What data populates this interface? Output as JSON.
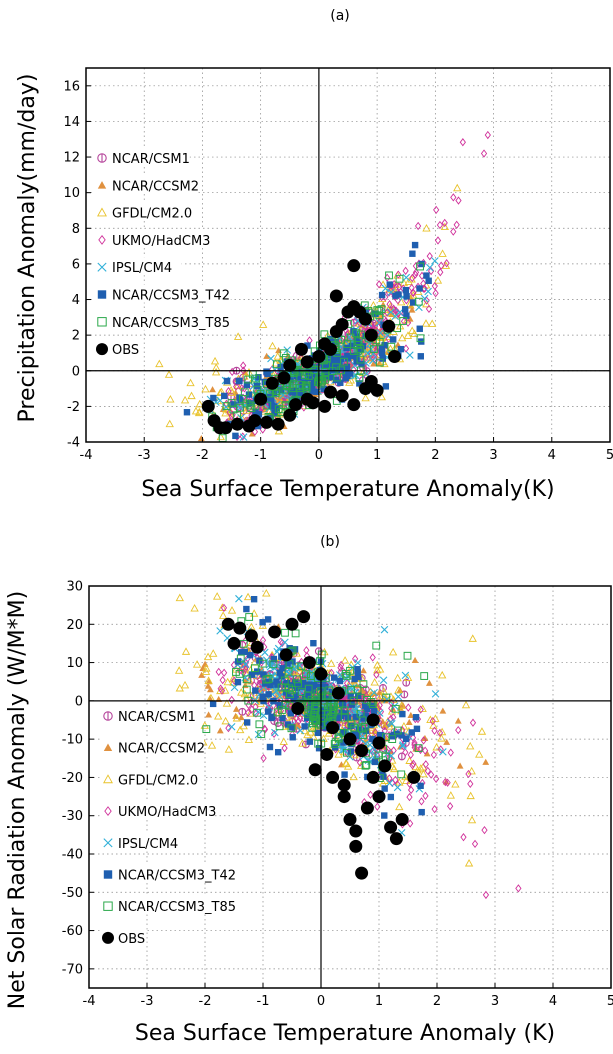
{
  "chart_data": [
    {
      "type": "scatter",
      "panel_label": "(a)",
      "xlabel": "Sea Surface Temperature Anomaly(K)",
      "ylabel": "Precipitation Anomaly(mm/day)",
      "xlim": [
        -4,
        5
      ],
      "ylim": [
        -4,
        17
      ],
      "xticks": [
        "-4",
        "-3",
        "-2",
        "-1",
        "0",
        "1",
        "2",
        "3",
        "4",
        "5"
      ],
      "yticks": [
        "-4",
        "-2",
        "0",
        "2",
        "4",
        "6",
        "8",
        "10",
        "12",
        "14",
        "16"
      ],
      "grid": true,
      "legend_position": "left",
      "series": [
        {
          "name": "NCAR/CSM1",
          "marker": "circle-bar",
          "color": "#b5449b",
          "trend": {
            "x_range": [
              -1.6,
              1.4
            ],
            "slope": 1.8,
            "curv": 0.25,
            "spread": 0.8
          },
          "count": 220
        },
        {
          "name": "NCAR/CCSM2",
          "marker": "triangle-filled",
          "color": "#e0913f",
          "trend": {
            "x_range": [
              -2.2,
              1.6
            ],
            "slope": 1.6,
            "curv": 0.3,
            "spread": 0.9
          },
          "count": 140
        },
        {
          "name": "GFDL/CM2.0",
          "marker": "triangle-open",
          "color": "#e8c22a",
          "trend": {
            "x_range": [
              -2.8,
              2.6
            ],
            "slope": 1.7,
            "curv": 0.4,
            "spread": 1.2
          },
          "count": 320
        },
        {
          "name": "UKMO/HadCM3",
          "marker": "diamond-open",
          "color": "#d0309a",
          "trend": {
            "x_range": [
              -1.6,
              3.5
            ],
            "slope": 2.0,
            "curv": 0.6,
            "spread": 1.0
          },
          "count": 320
        },
        {
          "name": "IPSL/CM4",
          "marker": "x",
          "color": "#30b0d8",
          "trend": {
            "x_range": [
              -2.0,
              2.0
            ],
            "slope": 1.9,
            "curv": 0.3,
            "spread": 1.0
          },
          "count": 200
        },
        {
          "name": "NCAR/CCSM3_T42",
          "marker": "square-filled",
          "color": "#1f5fb0",
          "trend": {
            "x_range": [
              -2.3,
              1.9
            ],
            "slope": 1.8,
            "curv": 0.3,
            "spread": 1.1
          },
          "count": 170
        },
        {
          "name": "NCAR/CCSM3_T85",
          "marker": "square-open",
          "color": "#2aa84a",
          "trend": {
            "x_range": [
              -2.2,
              1.8
            ],
            "slope": 1.9,
            "curv": 0.3,
            "spread": 1.1
          },
          "count": 150
        },
        {
          "name": "OBS",
          "marker": "circle-filled",
          "color": "#000000",
          "points": [
            [
              -1.9,
              -2.0
            ],
            [
              -1.8,
              -2.8
            ],
            [
              -1.7,
              -3.2
            ],
            [
              -1.6,
              -3.2
            ],
            [
              -1.4,
              -3.0
            ],
            [
              -1.2,
              -3.1
            ],
            [
              -1.1,
              -2.8
            ],
            [
              -0.9,
              -2.9
            ],
            [
              -0.7,
              -3.0
            ],
            [
              -0.5,
              -2.5
            ],
            [
              -0.4,
              -1.9
            ],
            [
              -0.2,
              -1.6
            ],
            [
              -0.1,
              -1.8
            ],
            [
              0.1,
              -2.0
            ],
            [
              0.2,
              -1.2
            ],
            [
              0.4,
              -1.4
            ],
            [
              0.6,
              -1.9
            ],
            [
              0.8,
              -1.0
            ],
            [
              0.9,
              -0.6
            ],
            [
              1.0,
              -1.1
            ],
            [
              -1.0,
              -1.6
            ],
            [
              -0.8,
              -0.7
            ],
            [
              -0.6,
              -0.4
            ],
            [
              -0.5,
              0.3
            ],
            [
              -0.2,
              0.5
            ],
            [
              0.0,
              0.8
            ],
            [
              0.2,
              1.2
            ],
            [
              0.3,
              2.2
            ],
            [
              0.4,
              2.6
            ],
            [
              0.5,
              3.3
            ],
            [
              0.6,
              3.6
            ],
            [
              0.7,
              3.3
            ],
            [
              0.8,
              2.9
            ],
            [
              0.3,
              4.2
            ],
            [
              0.6,
              5.9
            ],
            [
              -0.3,
              1.2
            ],
            [
              0.1,
              1.5
            ],
            [
              1.3,
              0.8
            ],
            [
              0.9,
              2.0
            ],
            [
              1.2,
              2.5
            ]
          ]
        }
      ]
    },
    {
      "type": "scatter",
      "panel_label": "(b)",
      "xlabel": "Sea Surface Temperature Anomaly (K)",
      "ylabel": "Net Solar Radiation Anomaly (W/M*M)",
      "xlim": [
        -4,
        5
      ],
      "ylim": [
        -75,
        30
      ],
      "xticks": [
        "-4",
        "-3",
        "-2",
        "-1",
        "0",
        "1",
        "2",
        "3",
        "4",
        "5"
      ],
      "yticks": [
        "-70",
        "-60",
        "-50",
        "-40",
        "-30",
        "-20",
        "-10",
        "0",
        "10",
        "20",
        "30"
      ],
      "grid": true,
      "legend_position": "left",
      "series": [
        {
          "name": "NCAR/CSM1",
          "marker": "circle-bar",
          "color": "#b5449b",
          "trend": {
            "x_range": [
              -1.6,
              1.5
            ],
            "slope": -4.0,
            "curv": -0.5,
            "spread": 6
          },
          "count": 240
        },
        {
          "name": "NCAR/CCSM2",
          "marker": "triangle-filled",
          "color": "#e0913f",
          "trend": {
            "x_range": [
              -2.2,
              3.0
            ],
            "slope": -3.5,
            "curv": -0.3,
            "spread": 6
          },
          "count": 140
        },
        {
          "name": "GFDL/CM2.0",
          "marker": "triangle-open",
          "color": "#e8c22a",
          "trend": {
            "x_range": [
              -2.5,
              2.8
            ],
            "slope": -5.0,
            "curv": -0.8,
            "spread": 8
          },
          "count": 340
        },
        {
          "name": "UKMO/HadCM3",
          "marker": "diamond-open",
          "color": "#d0309a",
          "trend": {
            "x_range": [
              -1.8,
              3.5
            ],
            "slope": -6.0,
            "curv": -2.0,
            "spread": 7
          },
          "count": 320
        },
        {
          "name": "IPSL/CM4",
          "marker": "x",
          "color": "#30b0d8",
          "trend": {
            "x_range": [
              -1.8,
              2.2
            ],
            "slope": -6.0,
            "curv": -1.0,
            "spread": 8
          },
          "count": 200
        },
        {
          "name": "NCAR/CCSM3_T42",
          "marker": "square-filled",
          "color": "#1f5fb0",
          "trend": {
            "x_range": [
              -2.0,
              1.9
            ],
            "slope": -6.0,
            "curv": -1.0,
            "spread": 8
          },
          "count": 180
        },
        {
          "name": "NCAR/CCSM3_T85",
          "marker": "square-open",
          "color": "#2aa84a",
          "trend": {
            "x_range": [
              -2.0,
              1.9
            ],
            "slope": -6.0,
            "curv": -1.0,
            "spread": 8
          },
          "count": 150
        },
        {
          "name": "OBS",
          "marker": "circle-filled",
          "color": "#000000",
          "points": [
            [
              -1.6,
              20
            ],
            [
              -1.4,
              19
            ],
            [
              -1.2,
              17
            ],
            [
              -1.5,
              15
            ],
            [
              -1.1,
              14
            ],
            [
              -0.8,
              18
            ],
            [
              -0.5,
              20
            ],
            [
              -0.3,
              22
            ],
            [
              -0.6,
              12
            ],
            [
              -0.2,
              10
            ],
            [
              0.0,
              7
            ],
            [
              0.3,
              2
            ],
            [
              -0.1,
              -18
            ],
            [
              0.1,
              -14
            ],
            [
              0.2,
              -20
            ],
            [
              0.4,
              -22
            ],
            [
              0.4,
              -25
            ],
            [
              0.5,
              -31
            ],
            [
              0.6,
              -34
            ],
            [
              0.6,
              -38
            ],
            [
              0.7,
              -45
            ],
            [
              0.8,
              -28
            ],
            [
              0.9,
              -20
            ],
            [
              1.0,
              -25
            ],
            [
              1.1,
              -17
            ],
            [
              1.2,
              -33
            ],
            [
              1.3,
              -36
            ],
            [
              1.4,
              -31
            ],
            [
              1.6,
              -20
            ],
            [
              0.7,
              -13
            ],
            [
              1.0,
              -11
            ],
            [
              -0.4,
              -2
            ],
            [
              0.2,
              -7
            ],
            [
              0.5,
              -10
            ],
            [
              0.9,
              -5
            ]
          ]
        }
      ]
    }
  ]
}
